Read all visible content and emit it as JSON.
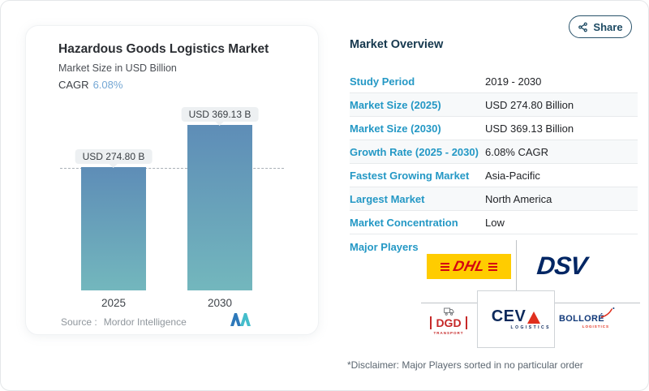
{
  "share": {
    "label": "Share"
  },
  "chart_card": {
    "title": "Hazardous Goods Logistics Market",
    "subtitle": "Market Size in USD Billion",
    "cagr_label": "CAGR",
    "cagr_value": "6.08%",
    "source_label": "Source :",
    "source_value": "Mordor Intelligence"
  },
  "chart_data": {
    "type": "bar",
    "categories": [
      "2025",
      "2030"
    ],
    "values": [
      274.8,
      369.13
    ],
    "bar_labels": [
      "USD 274.80 B",
      "USD 369.13 B"
    ],
    "title": "Hazardous Goods Logistics Market",
    "ylabel": "Market Size in USD Billion",
    "ylim": [
      0,
      400
    ],
    "grid": false,
    "legend": "none",
    "bar_color_top": "#5e8db7",
    "bar_color_bottom": "#73b7bd",
    "annotations": [
      "horizontal dashed reference line at 2025 value (274.80)"
    ]
  },
  "market_overview": {
    "heading": "Market Overview",
    "rows": [
      {
        "label": "Study Period",
        "value": "2019 - 2030"
      },
      {
        "label": "Market Size (2025)",
        "value": "USD 274.80 Billion"
      },
      {
        "label": "Market Size (2030)",
        "value": "USD 369.13 Billion"
      },
      {
        "label": "Growth Rate (2025 - 2030)",
        "value": "6.08% CAGR"
      },
      {
        "label": "Fastest Growing Market",
        "value": "Asia-Pacific"
      },
      {
        "label": "Largest Market",
        "value": "North America"
      },
      {
        "label": "Market Concentration",
        "value": "Low"
      }
    ],
    "major_players_label": "Major Players",
    "logos": {
      "dhl": {
        "name": "DHL"
      },
      "dsv": {
        "name": "DSV"
      },
      "dgd": {
        "name": "DGD",
        "sub": "TRANSPORT"
      },
      "ceva": {
        "name": "CEV",
        "sub": "LOGISTICS"
      },
      "bollore": {
        "name": "BOLLORÉ",
        "sub": "LOGISTICS"
      }
    },
    "disclaimer": "*Disclaimer: Major Players sorted in no particular order"
  },
  "colors": {
    "accent_blue": "#2498c5",
    "heading_navy": "#16384e",
    "cagr_blue": "#74a7d4",
    "bar_gradient_top": "#5e8db7",
    "bar_gradient_bottom": "#73b7bd",
    "dhl_yellow": "#FFCC00",
    "dhl_red": "#D40511",
    "dsv_navy": "#002664",
    "dgd_red": "#c62828",
    "ceva_navy": "#0e2a5c",
    "ceva_red": "#e0301e",
    "bollore_navy": "#123a7a"
  }
}
